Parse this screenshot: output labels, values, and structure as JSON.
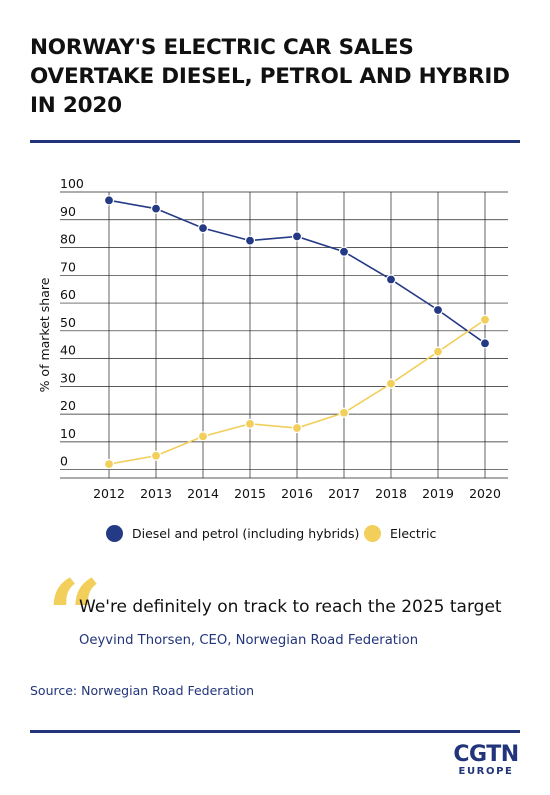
{
  "header": {
    "title": "NORWAY'S ELECTRIC CAR SALES OVERTAKE DIESEL, PETROL AND HYBRID IN 2020"
  },
  "chart_data": {
    "type": "line",
    "title": "",
    "xlabel": "",
    "ylabel": "% of market share",
    "x": [
      "2012",
      "2013",
      "2014",
      "2015",
      "2016",
      "2017",
      "2018",
      "2019",
      "2020"
    ],
    "yticks": [
      0,
      10,
      20,
      30,
      40,
      50,
      60,
      70,
      80,
      90,
      100
    ],
    "ylim": [
      -3,
      100
    ],
    "grid": true,
    "legend": "bottom",
    "series": [
      {
        "name": "Diesel and petrol (including hybrids)",
        "color": "#253a85",
        "values": [
          97,
          94,
          87,
          82.5,
          84,
          78.5,
          68.5,
          57.5,
          45.5
        ]
      },
      {
        "name": "Electric",
        "color": "#f1cf5a",
        "values": [
          2,
          5,
          12,
          16.5,
          15,
          20.5,
          31,
          42.5,
          54
        ]
      }
    ]
  },
  "quote": {
    "text": "We're definitely on track to reach the 2025 target",
    "attribution": "Oeyvind Thorsen, CEO, Norwegian Road Federation"
  },
  "footer": {
    "source": "Source: Norwegian Road Federation",
    "logo_main": "CGTN",
    "logo_sub": "EUROPE"
  },
  "colors": {
    "accent": "#22357a",
    "electric": "#f1cf5a",
    "diesel": "#253a85"
  }
}
